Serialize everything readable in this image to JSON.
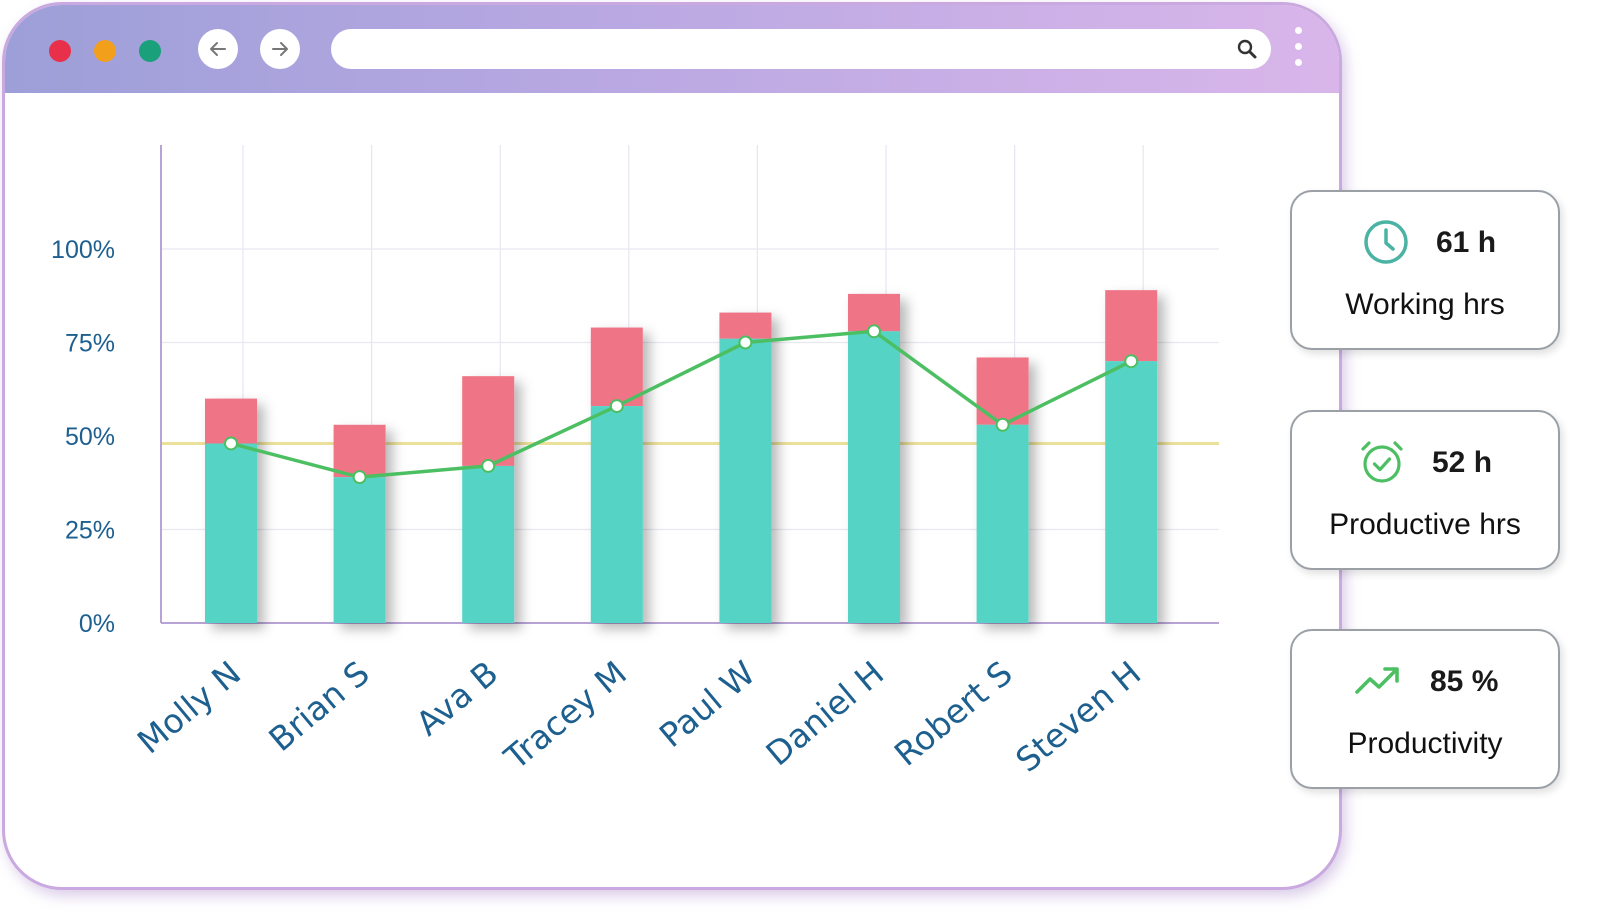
{
  "browser": {
    "traffic_lights": [
      "#e8304a",
      "#f2a01c",
      "#1aa07a"
    ],
    "address_value": ""
  },
  "chart_data": {
    "type": "bar",
    "categories": [
      "Molly N",
      "Brian S",
      "Ava B",
      "Tracey M",
      "Paul W",
      "Daniel H",
      "Robert S",
      "Steven H"
    ],
    "y_ticks": [
      "0%",
      "25%",
      "50%",
      "75%",
      "100%"
    ],
    "ylim": [
      0,
      100
    ],
    "series": [
      {
        "values": [
          48,
          39,
          42,
          58,
          76,
          78,
          53,
          70
        ],
        "color": "#55d4c6",
        "kind": "bar"
      },
      {
        "values": [
          12,
          14,
          24,
          21,
          7,
          10,
          18,
          19
        ],
        "color": "#ef7486",
        "kind": "bar-stacked"
      },
      {
        "values": [
          48,
          39,
          42,
          58,
          75,
          78,
          53,
          70
        ],
        "color": "#4cbf62",
        "kind": "line"
      }
    ],
    "reference_line": {
      "value": 48,
      "color": "#ece19a"
    },
    "grid": true
  },
  "stats": {
    "working": {
      "value": "61 h",
      "label": "Working hrs",
      "icon": "clock-icon"
    },
    "productive": {
      "value": "52 h",
      "label": "Productive hrs",
      "icon": "alarm-check-icon"
    },
    "productivity": {
      "value": "85 %",
      "label": "Productivity",
      "icon": "trend-up-icon"
    }
  },
  "colors": {
    "axis_text": "#1d5f8f",
    "teal_icon": "#4ab3a4",
    "green_icon": "#4cbf62"
  }
}
